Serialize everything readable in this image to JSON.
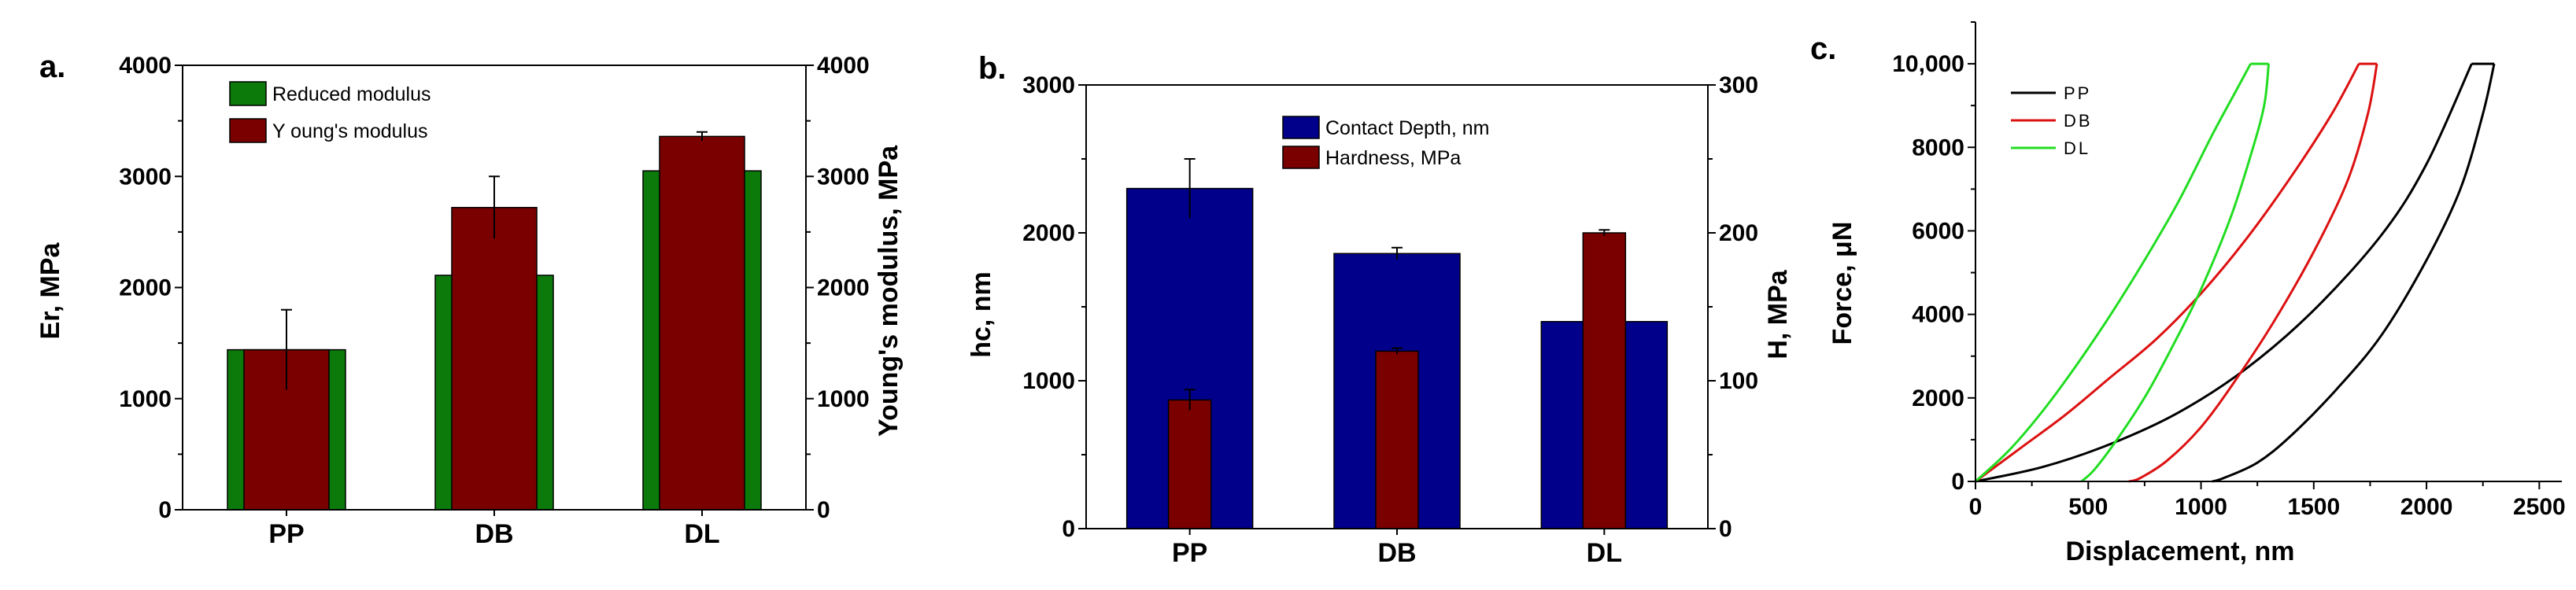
{
  "panels": {
    "a": {
      "letter": "a.",
      "chart_data": {
        "type": "bar",
        "categories": [
          "PP",
          "DB",
          "DL"
        ],
        "series": [
          {
            "name": "Reduced modulus",
            "axis": "left",
            "values": [
              1440,
              2110,
              3050
            ],
            "color": "#0b7a0b"
          },
          {
            "name": "Young's modulus",
            "axis": "right",
            "values": [
              1440,
              2720,
              3360
            ],
            "errors": [
              360,
              280,
              40
            ],
            "color": "#7a0000"
          }
        ],
        "ylabel": "Er, MPa",
        "ylabel_right": "Young's modulus, MPa",
        "ylim": [
          0,
          4000
        ],
        "ylim_right": [
          0,
          4000
        ],
        "yticks": [
          "0",
          "1000",
          "2000",
          "3000",
          "4000"
        ],
        "yticks_right": [
          "0",
          "1000",
          "2000",
          "3000",
          "4000"
        ],
        "legend_labels": [
          "Reduced modulus",
          "Y oung's modulus"
        ],
        "legend_position": "top-left",
        "grid": false
      }
    },
    "b": {
      "letter": "b.",
      "chart_data": {
        "type": "bar",
        "categories": [
          "PP",
          "DB",
          "DL"
        ],
        "series": [
          {
            "name": "Contact Depth, nm",
            "axis": "left",
            "values": [
              2300,
              1860,
              1400
            ],
            "errors": [
              200,
              40,
              0
            ],
            "color": "#00008b"
          },
          {
            "name": "Hardness, MPa",
            "axis": "right",
            "values": [
              87,
              120,
              200
            ],
            "errors": [
              7,
              2,
              2
            ],
            "color": "#7a0000"
          }
        ],
        "ylabel": "hc, nm",
        "ylabel_right": "H, MPa",
        "ylim": [
          0,
          3000
        ],
        "ylim_right": [
          0,
          300
        ],
        "yticks": [
          "0",
          "1000",
          "2000",
          "3000"
        ],
        "yticks_right": [
          "0",
          "100",
          "200",
          "300"
        ],
        "legend_labels": [
          "Contact Depth, nm",
          "Hardness, MPa"
        ],
        "legend_position": "top-center",
        "grid": false
      }
    },
    "c": {
      "letter": "c.",
      "chart_data": {
        "type": "line",
        "xlabel": "Displacement, nm",
        "ylabel": "Force, μN",
        "xlim": [
          0,
          2600
        ],
        "ylim": [
          0,
          11000
        ],
        "xticks": [
          "0",
          "500",
          "1000",
          "1500",
          "2000",
          "2500"
        ],
        "yticks": [
          "0",
          "2000",
          "4000",
          "6000",
          "8000",
          "10,000"
        ],
        "legend_labels": [
          "PP",
          "DB",
          "DL"
        ],
        "legend_position": "top-left",
        "grid": false,
        "series": [
          {
            "name": "PP",
            "color": "#000000",
            "loading": {
              "x": [
                0,
                300,
                600,
                900,
                1200,
                1500,
                1800,
                2000,
                2200
              ],
              "y": [
                0,
                350,
                900,
                1650,
                2700,
                4100,
                5900,
                7600,
                10000
              ]
            },
            "hold": {
              "x": [
                2200,
                2300
              ],
              "y": [
                10000,
                10000
              ]
            },
            "unloading": {
              "x": [
                2300,
                2250,
                2150,
                2000,
                1800,
                1600,
                1400,
                1250,
                1100,
                1050
              ],
              "y": [
                10000,
                8800,
                7000,
                5300,
                3500,
                2200,
                1100,
                450,
                80,
                0
              ]
            }
          },
          {
            "name": "DB",
            "color": "#dd1111",
            "loading": {
              "x": [
                0,
                200,
                400,
                600,
                800,
                1000,
                1200,
                1400,
                1580,
                1700
              ],
              "y": [
                0,
                800,
                1600,
                2500,
                3400,
                4500,
                5800,
                7300,
                8800,
                10000
              ]
            },
            "hold": {
              "x": [
                1700,
                1780
              ],
              "y": [
                10000,
                10000
              ]
            },
            "unloading": {
              "x": [
                1780,
                1740,
                1650,
                1500,
                1320,
                1150,
                1000,
                850,
                730,
                680
              ],
              "y": [
                10000,
                8800,
                7200,
                5500,
                3800,
                2400,
                1300,
                500,
                80,
                0
              ]
            }
          },
          {
            "name": "DL",
            "color": "#22dd22",
            "loading": {
              "x": [
                0,
                150,
                300,
                450,
                600,
                750,
                900,
                1050,
                1150,
                1220
              ],
              "y": [
                0,
                750,
                1700,
                2800,
                4000,
                5300,
                6700,
                8300,
                9300,
                10000
              ]
            },
            "hold": {
              "x": [
                1220,
                1300
              ],
              "y": [
                10000,
                10000
              ]
            },
            "unloading": {
              "x": [
                1300,
                1280,
                1220,
                1130,
                1000,
                880,
                760,
                640,
                530,
                470
              ],
              "y": [
                10000,
                9000,
                7800,
                6300,
                4600,
                3300,
                2100,
                1100,
                300,
                0
              ]
            }
          }
        ]
      }
    }
  }
}
